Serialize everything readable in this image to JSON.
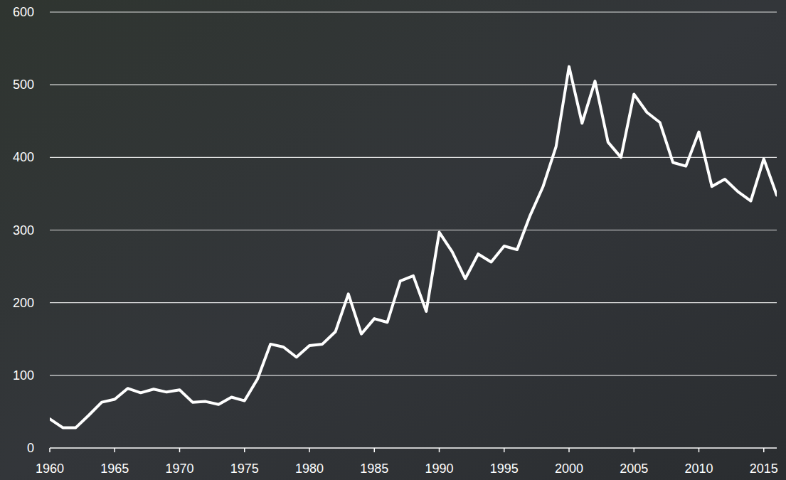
{
  "chart_data": {
    "type": "line",
    "x": [
      1960,
      1961,
      1962,
      1963,
      1964,
      1965,
      1966,
      1967,
      1968,
      1969,
      1970,
      1971,
      1972,
      1973,
      1974,
      1975,
      1976,
      1977,
      1978,
      1979,
      1980,
      1981,
      1982,
      1983,
      1984,
      1985,
      1986,
      1987,
      1988,
      1989,
      1990,
      1991,
      1992,
      1993,
      1994,
      1995,
      1996,
      1997,
      1998,
      1999,
      2000,
      2001,
      2002,
      2003,
      2004,
      2005,
      2006,
      2007,
      2008,
      2009,
      2010,
      2011,
      2012,
      2013,
      2014,
      2015,
      2016
    ],
    "values": [
      40,
      28,
      28,
      45,
      63,
      67,
      82,
      76,
      81,
      77,
      80,
      63,
      64,
      60,
      70,
      65,
      95,
      143,
      139,
      125,
      141,
      143,
      160,
      212,
      157,
      178,
      173,
      230,
      237,
      188,
      297,
      270,
      233,
      267,
      256,
      278,
      273,
      320,
      360,
      415,
      525,
      447,
      505,
      421,
      400,
      487,
      462,
      448,
      393,
      388,
      435,
      360,
      370,
      353,
      340,
      398,
      348
    ],
    "color": "#ffffff",
    "xlim": [
      1960,
      2016
    ],
    "xticks": [
      1960,
      1965,
      1970,
      1975,
      1980,
      1985,
      1990,
      1995,
      2000,
      2005,
      2010,
      2015
    ],
    "ylim": [
      0,
      600
    ],
    "yticks": [
      0,
      100,
      200,
      300,
      400,
      500,
      600
    ],
    "grid": true
  }
}
